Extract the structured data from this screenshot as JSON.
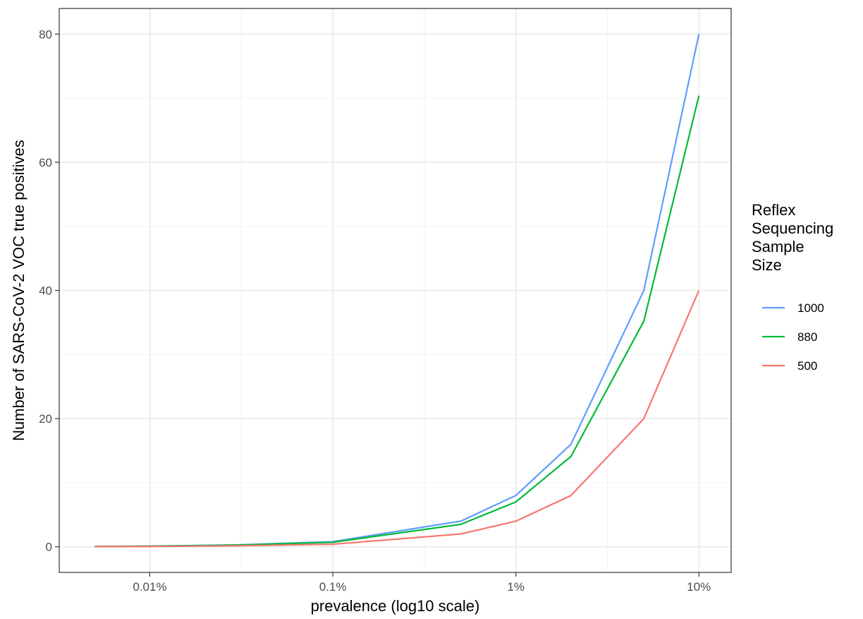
{
  "chart_data": {
    "type": "line",
    "xlabel": "prevalence (log10 scale)",
    "ylabel": "Number of SARS-CoV-2 VOC true positives",
    "x_scale": "log10",
    "x_unit": "percent",
    "xlim": [
      0.0032,
      15
    ],
    "ylim": [
      -4,
      84
    ],
    "x_ticks": [
      0.01,
      0.1,
      1,
      10
    ],
    "x_tick_labels": [
      "0.01%",
      "0.1%",
      "1%",
      "10%"
    ],
    "y_ticks": [
      0,
      20,
      40,
      60,
      80
    ],
    "y_tick_labels": [
      "0",
      "20",
      "40",
      "60",
      "80"
    ],
    "grid": true,
    "legend": {
      "title_lines": [
        "Reflex",
        "Sequencing",
        "Sample",
        "Size"
      ],
      "position": "right"
    },
    "x": [
      0.005,
      0.01,
      0.03,
      0.1,
      0.5,
      1,
      2,
      5,
      10
    ],
    "series": [
      {
        "name": "1000",
        "color": "#619CFF",
        "values": [
          0.05,
          0.1,
          0.3,
          0.8,
          4,
          8,
          16,
          40,
          80
        ]
      },
      {
        "name": "880",
        "color": "#00BA38",
        "values": [
          0.044,
          0.09,
          0.26,
          0.7,
          3.5,
          7,
          14.1,
          35.2,
          70.4
        ]
      },
      {
        "name": "500",
        "color": "#F8766D",
        "values": [
          0.025,
          0.05,
          0.15,
          0.4,
          2,
          4,
          8,
          20,
          40
        ]
      }
    ]
  }
}
